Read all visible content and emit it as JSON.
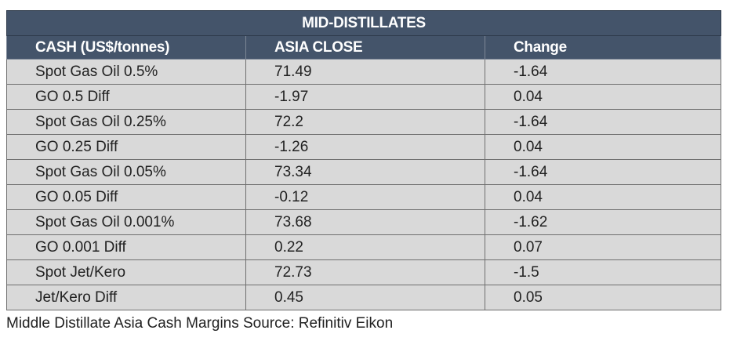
{
  "table": {
    "title": "MID-DISTILLATES",
    "headers": [
      "CASH (US$/tonnes)",
      "ASIA CLOSE",
      "Change"
    ],
    "rows": [
      [
        "Spot Gas Oil 0.5%",
        "71.49",
        "-1.64"
      ],
      [
        "GO 0.5 Diff",
        "-1.97",
        "0.04"
      ],
      [
        "Spot Gas Oil 0.25%",
        "72.2",
        "-1.64"
      ],
      [
        "GO 0.25 Diff",
        "-1.26",
        "0.04"
      ],
      [
        "Spot Gas Oil 0.05%",
        "73.34",
        "-1.64"
      ],
      [
        "GO 0.05 Diff",
        "-0.12",
        "0.04"
      ],
      [
        "Spot Gas Oil 0.001%",
        "73.68",
        "-1.62"
      ],
      [
        "GO 0.001 Diff",
        "0.22",
        "0.07"
      ],
      [
        "Spot Jet/Kero",
        "72.73",
        "-1.5"
      ],
      [
        "Jet/Kero Diff",
        "0.45",
        "0.05"
      ]
    ]
  },
  "caption": "Middle Distillate Asia Cash Margins Source: Refinitiv Eikon",
  "colors": {
    "header_bg": "#44546a",
    "header_text": "#ffffff",
    "cell_bg": "#d9d9d9"
  }
}
